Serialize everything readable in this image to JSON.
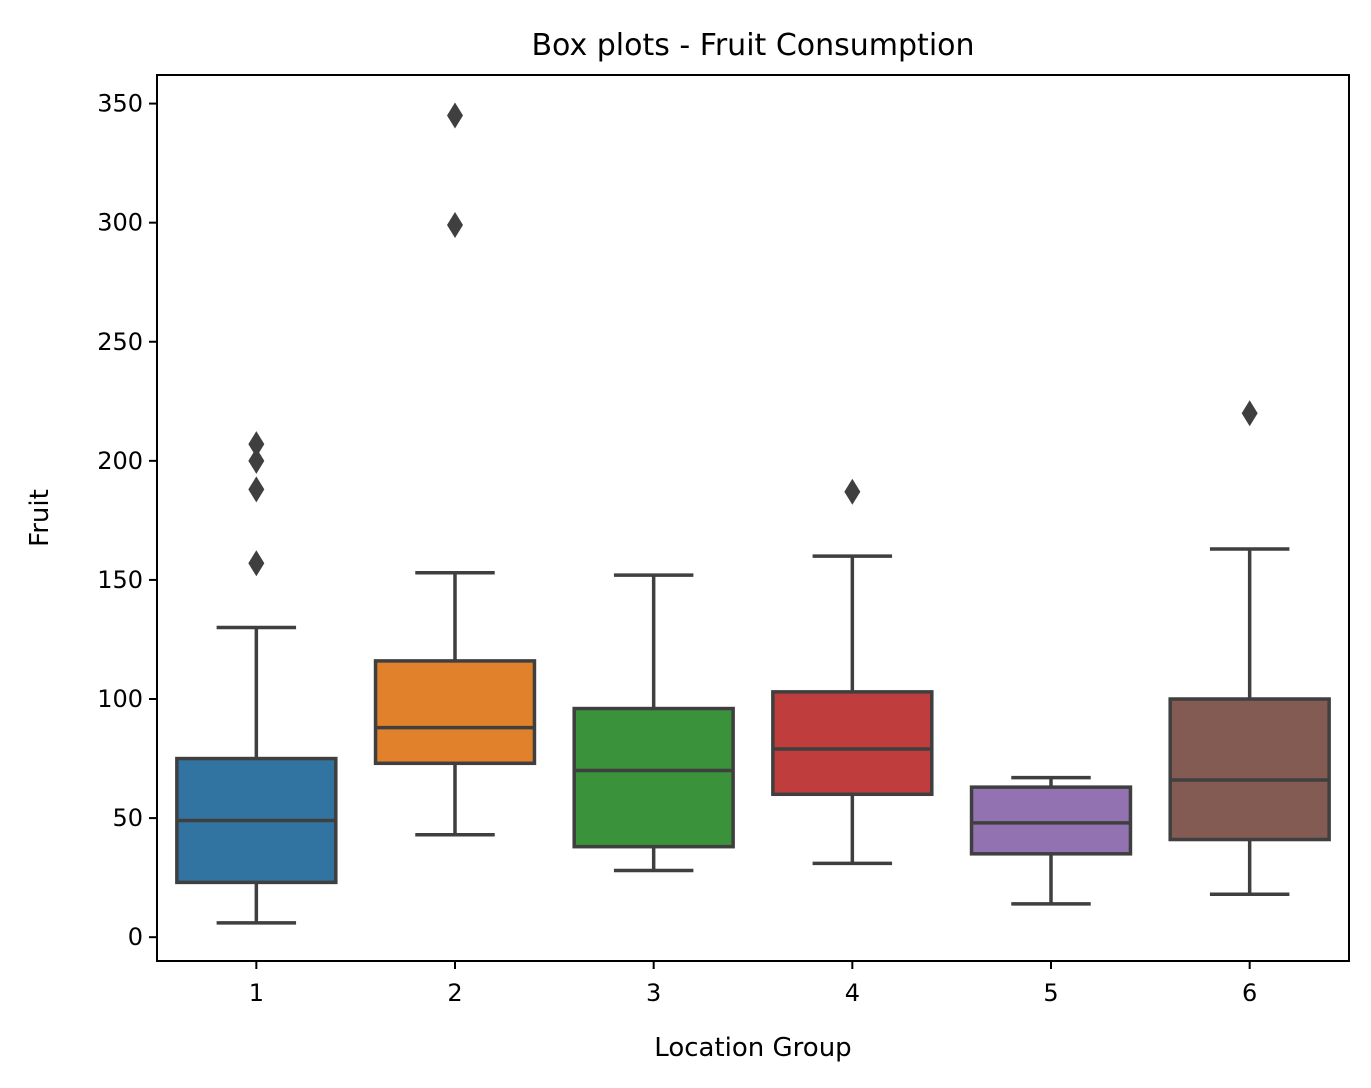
{
  "chart_data": {
    "type": "box",
    "title": "Box plots - Fruit Consumption",
    "xlabel": "Location Group",
    "ylabel": "Fruit",
    "ylim": [
      -10,
      362
    ],
    "yticks": [
      0,
      50,
      100,
      150,
      200,
      250,
      300,
      350
    ],
    "grid": false,
    "categories": [
      "1",
      "2",
      "3",
      "4",
      "5",
      "6"
    ],
    "boxes": [
      {
        "category": "1",
        "whisker_low": 6,
        "q1": 23,
        "median": 49,
        "q3": 75,
        "whisker_high": 130,
        "outliers": [
          157,
          188,
          200,
          207
        ],
        "color": "#3274a1"
      },
      {
        "category": "2",
        "whisker_low": 43,
        "q1": 73,
        "median": 88,
        "q3": 116,
        "whisker_high": 153,
        "outliers": [
          299,
          345
        ],
        "color": "#e1812c"
      },
      {
        "category": "3",
        "whisker_low": 28,
        "q1": 38,
        "median": 70,
        "q3": 96,
        "whisker_high": 152,
        "outliers": [],
        "color": "#3a923a"
      },
      {
        "category": "4",
        "whisker_low": 31,
        "q1": 60,
        "median": 79,
        "q3": 103,
        "whisker_high": 160,
        "outliers": [
          187
        ],
        "color": "#c03d3e"
      },
      {
        "category": "5",
        "whisker_low": 14,
        "q1": 35,
        "median": 48,
        "q3": 63,
        "whisker_high": 67,
        "outliers": [],
        "color": "#9372b2"
      },
      {
        "category": "6",
        "whisker_low": 18,
        "q1": 41,
        "median": 66,
        "q3": 100,
        "whisker_high": 163,
        "outliers": [
          220
        ],
        "color": "#845b53"
      }
    ]
  }
}
